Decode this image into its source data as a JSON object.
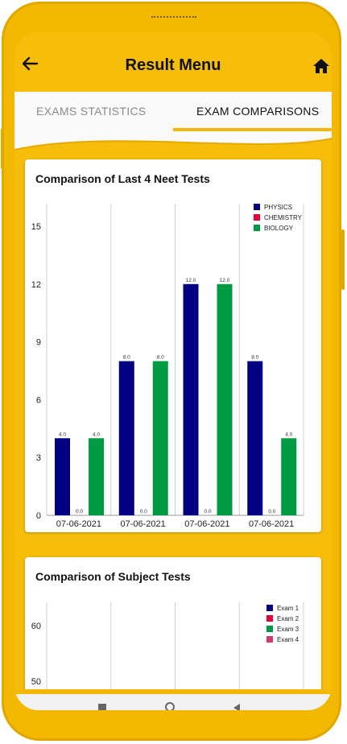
{
  "header": {
    "title": "Result Menu",
    "back_icon": "arrow-left-icon",
    "home_icon": "home-icon"
  },
  "tabs": [
    {
      "label": "EXAMS STATISTICS",
      "active": false
    },
    {
      "label": "EXAM COMPARISONS",
      "active": true
    }
  ],
  "colors": {
    "accent": "#f3b800",
    "physics": "#000080",
    "chemistry": "#e8003a",
    "biology": "#009944",
    "exam4": "#d33a6a"
  },
  "chart1_title": "Comparison of Last 4 Neet Tests",
  "chart2_title": "Comparison of Subject Tests",
  "chart_data": [
    {
      "type": "bar",
      "title": "Comparison of Last 4 Neet Tests",
      "categories": [
        "07-06-2021",
        "07-06-2021",
        "07-06-2021",
        "07-06-2021"
      ],
      "series": [
        {
          "name": "PHYSICS",
          "values": [
            4.0,
            8.0,
            12.0,
            8.0
          ],
          "labels": [
            "4.0",
            "8.0",
            "12.0",
            "8.0"
          ],
          "color": "#000080"
        },
        {
          "name": "CHEMISTRY",
          "values": [
            0.0,
            0.0,
            0.0,
            0.0
          ],
          "labels": [
            "0.0",
            "0.0",
            "0.0",
            "0.0"
          ],
          "color": "#e8003a"
        },
        {
          "name": "BIOLOGY",
          "values": [
            4.0,
            8.0,
            12.0,
            4.0
          ],
          "labels": [
            "4.0",
            "8.0",
            "12.0",
            "4.0"
          ],
          "color": "#009944"
        }
      ],
      "ylim": [
        0,
        16
      ],
      "yticks": [
        "0",
        "3",
        "6",
        "9",
        "12",
        "15"
      ],
      "legend": "top-right"
    },
    {
      "type": "bar",
      "title": "Comparison of Subject Tests",
      "categories": [],
      "series": [
        {
          "name": "Exam 1",
          "values": [],
          "color": "#000080"
        },
        {
          "name": "Exam 2",
          "values": [],
          "color": "#e8003a"
        },
        {
          "name": "Exam 3",
          "values": [],
          "color": "#009944"
        },
        {
          "name": "Exam 4",
          "values": [],
          "color": "#d33a6a"
        }
      ],
      "yticks": [
        "50",
        "60"
      ],
      "legend": "top-right"
    }
  ]
}
